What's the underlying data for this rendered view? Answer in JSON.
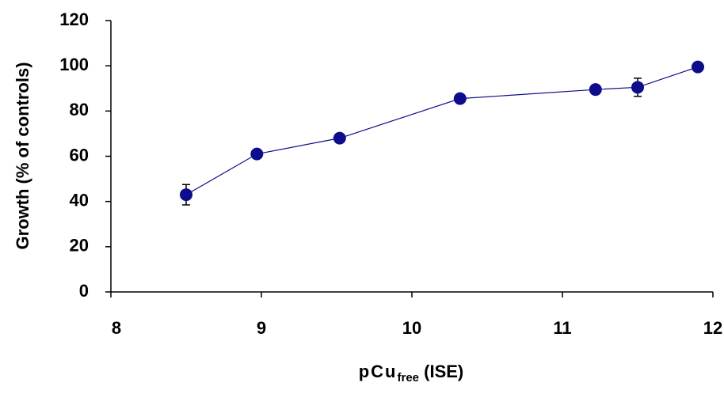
{
  "chart_data": {
    "type": "line",
    "xlabel": "pCu",
    "xlabel_sub": "free",
    "xlabel_suffix": " (ISE)",
    "ylabel": "Growth (% of controls)",
    "x": [
      8.5,
      8.97,
      9.52,
      10.32,
      11.22,
      11.5,
      11.9
    ],
    "series": [
      {
        "name": "Growth",
        "color": "#0c0c8c",
        "values": [
          43,
          61,
          68,
          85.5,
          89.5,
          90.5,
          99.5
        ],
        "errors": [
          4.5,
          1,
          1,
          1,
          2,
          4,
          1
        ]
      }
    ],
    "xlim": [
      8,
      12
    ],
    "xticks": [
      8,
      9,
      10,
      11,
      12
    ],
    "ylim": [
      0,
      120
    ],
    "yticks": [
      0,
      20,
      40,
      60,
      80,
      100,
      120
    ],
    "grid": false
  }
}
